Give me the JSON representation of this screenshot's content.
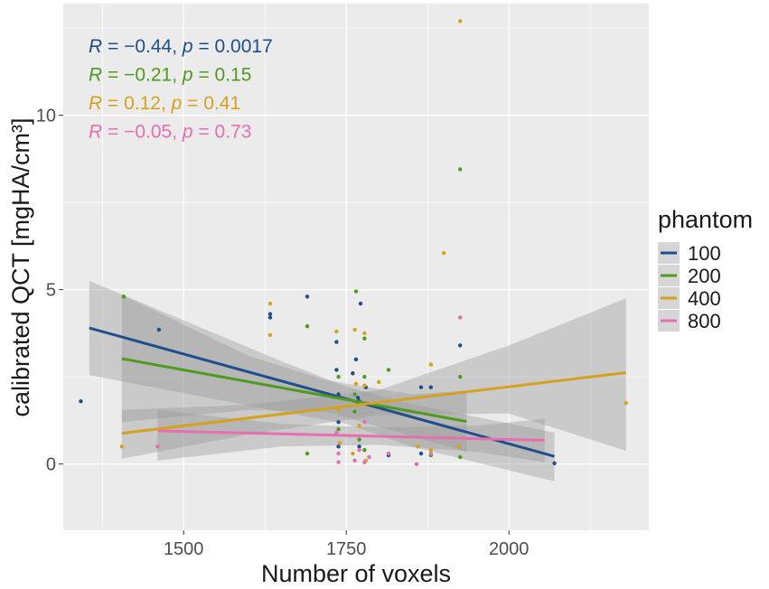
{
  "chart_data": {
    "type": "scatter",
    "title": "",
    "xlabel": "Number of voxels",
    "ylabel": "calibrated QCT [mgHA/cm³]",
    "xlim": [
      1315,
      2215
    ],
    "ylim": [
      -1.9,
      13.2
    ],
    "x_ticks": [
      {
        "value": 1500,
        "label": "1500"
      },
      {
        "value": 1750,
        "label": "1750"
      },
      {
        "value": 2000,
        "label": "2000"
      }
    ],
    "y_ticks": [
      {
        "value": 0,
        "label": "0"
      },
      {
        "value": 5,
        "label": "5"
      },
      {
        "value": 10,
        "label": "10"
      }
    ],
    "grid": true,
    "legend": {
      "title": "phantom",
      "placement": "right",
      "entries": [
        "100",
        "200",
        "400",
        "800"
      ]
    },
    "annotations": [
      {
        "series": "100",
        "r_label": "R",
        "r_value": " = −0.44, ",
        "p_label": "p",
        "p_value": " = 0.0017"
      },
      {
        "series": "200",
        "r_label": "R",
        "r_value": " = −0.21, ",
        "p_label": "p",
        "p_value": " = 0.15"
      },
      {
        "series": "400",
        "r_label": "R",
        "r_value": " = 0.12, ",
        "p_label": "p",
        "p_value": " = 0.41"
      },
      {
        "series": "800",
        "r_label": "R",
        "r_value": " = −0.05, ",
        "p_label": "p",
        "p_value": " = 0.73"
      }
    ],
    "series": [
      {
        "name": "100",
        "color": "#1f4e8c",
        "fit": {
          "x": [
            1355,
            2070
          ],
          "y": [
            3.9,
            0.22
          ]
        },
        "ci_band": {
          "x": [
            1355,
            1650,
            1750,
            1850,
            2070
          ],
          "upper": [
            5.25,
            2.95,
            2.22,
            1.72,
            0.9
          ],
          "lower": [
            2.55,
            1.5,
            1.15,
            0.5,
            -0.5
          ]
        },
        "points": [
          [
            1342,
            1.8
          ],
          [
            1462,
            3.85
          ],
          [
            1633,
            4.2
          ],
          [
            1633,
            4.3
          ],
          [
            1690,
            4.8
          ],
          [
            1735,
            3.5
          ],
          [
            1735,
            2.7
          ],
          [
            1760,
            2.6
          ],
          [
            1772,
            4.6
          ],
          [
            1765,
            3.0
          ],
          [
            1738,
            2.0
          ],
          [
            1768,
            1.9
          ],
          [
            1738,
            1.2
          ],
          [
            1770,
            1.8
          ],
          [
            1780,
            2.2
          ],
          [
            1738,
            0.5
          ],
          [
            1770,
            0.5
          ],
          [
            1865,
            2.2
          ],
          [
            1880,
            2.2
          ],
          [
            1925,
            3.4
          ],
          [
            2070,
            0.02
          ],
          [
            1815,
            0.25
          ],
          [
            1865,
            0.3
          ]
        ]
      },
      {
        "name": "200",
        "color": "#4f9a1f",
        "fit": {
          "x": [
            1405,
            1935
          ],
          "y": [
            3.02,
            1.22
          ]
        },
        "ci_band": {
          "x": [
            1405,
            1600,
            1720,
            1850,
            1935
          ],
          "upper": [
            4.85,
            3.1,
            2.4,
            2.0,
            2.1
          ],
          "lower": [
            1.2,
            1.55,
            1.5,
            0.8,
            0.35
          ]
        },
        "points": [
          [
            1408,
            4.8
          ],
          [
            1690,
            3.95
          ],
          [
            1765,
            4.95
          ],
          [
            1778,
            3.6
          ],
          [
            1778,
            2.5
          ],
          [
            1738,
            2.5
          ],
          [
            1763,
            2.0
          ],
          [
            1815,
            2.7
          ],
          [
            1925,
            8.45
          ],
          [
            1925,
            2.5
          ],
          [
            1763,
            1.5
          ],
          [
            1738,
            1.0
          ],
          [
            1770,
            0.7
          ],
          [
            1690,
            0.3
          ],
          [
            1778,
            0.4
          ],
          [
            1880,
            0.25
          ],
          [
            1925,
            0.2
          ]
        ]
      },
      {
        "name": "400",
        "color": "#d4a21f",
        "fit": {
          "x": [
            1405,
            2180
          ],
          "y": [
            0.88,
            2.62
          ]
        },
        "ci_band": {
          "x": [
            1405,
            1600,
            1800,
            2000,
            2180
          ],
          "upper": [
            1.55,
            1.7,
            2.12,
            3.4,
            4.75
          ],
          "lower": [
            0.15,
            0.85,
            1.4,
            1.45,
            0.38
          ]
        },
        "points": [
          [
            1405,
            0.5
          ],
          [
            1633,
            4.6
          ],
          [
            1633,
            3.7
          ],
          [
            1735,
            3.8
          ],
          [
            1763,
            3.85
          ],
          [
            1778,
            3.75
          ],
          [
            1765,
            2.3
          ],
          [
            1778,
            2.25
          ],
          [
            1800,
            2.35
          ],
          [
            1880,
            2.85
          ],
          [
            1900,
            6.05
          ],
          [
            1925,
            12.7
          ],
          [
            1923,
            0.5
          ],
          [
            1738,
            1.55
          ],
          [
            1770,
            1.1
          ],
          [
            1740,
            0.6
          ],
          [
            1760,
            0.3
          ],
          [
            1780,
            0.1
          ],
          [
            1860,
            0.5
          ],
          [
            1880,
            0.4
          ],
          [
            2180,
            1.75
          ]
        ]
      },
      {
        "name": "800",
        "color": "#e76fb0",
        "fit": {
          "x": [
            1460,
            2055
          ],
          "y": [
            0.95,
            0.68
          ]
        },
        "ci_band": {
          "x": [
            1460,
            1650,
            1800,
            1950,
            2055
          ],
          "upper": [
            1.55,
            1.15,
            1.05,
            1.1,
            1.3
          ],
          "lower": [
            0.1,
            0.5,
            0.55,
            0.35,
            0.05
          ]
        },
        "points": [
          [
            1460,
            0.5
          ],
          [
            1925,
            4.2
          ],
          [
            1738,
            0.05
          ],
          [
            1763,
            0.1
          ],
          [
            1778,
            0.05
          ],
          [
            1815,
            0.3
          ],
          [
            1858,
            0.0
          ],
          [
            1880,
            0.3
          ],
          [
            1738,
            0.3
          ],
          [
            1770,
            0.4
          ],
          [
            1785,
            0.2
          ],
          [
            1735,
            0.9
          ],
          [
            1778,
            1.2
          ]
        ]
      }
    ],
    "band_color": "#999999",
    "panel_color": "#ebebeb",
    "grid_color": "#ffffff"
  }
}
